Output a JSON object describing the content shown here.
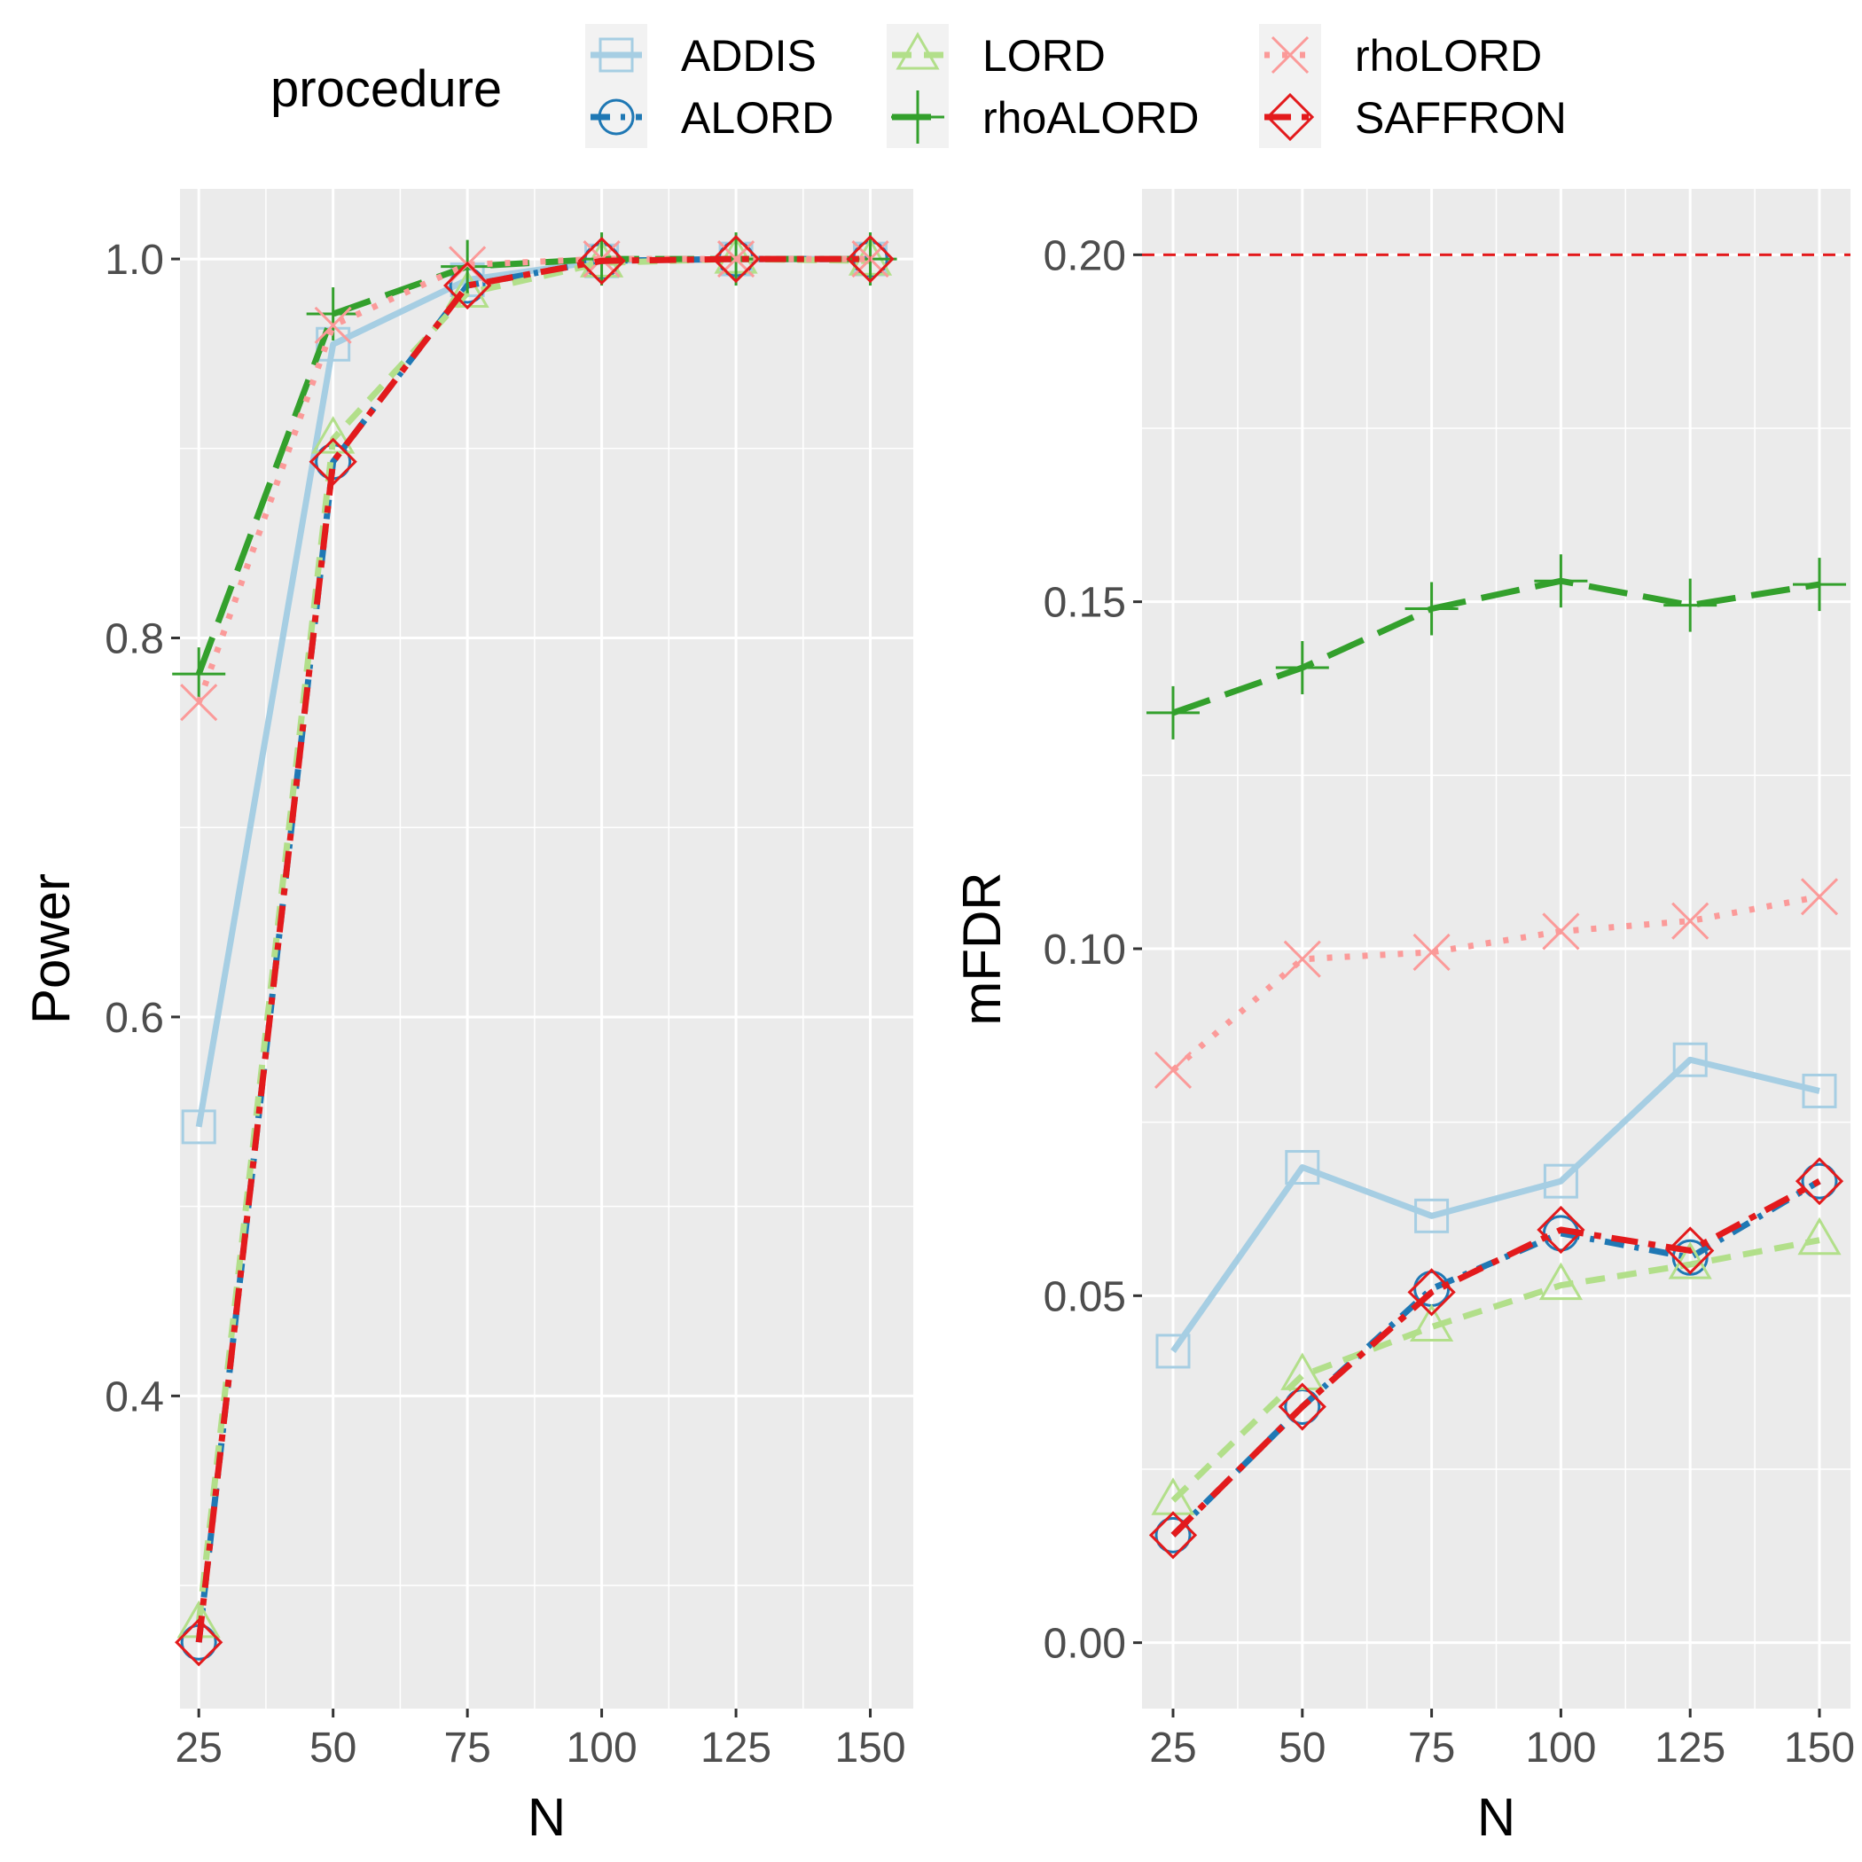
{
  "legend": {
    "title": "procedure",
    "entries": [
      {
        "name": "ADDIS",
        "color": "#A6CEE3",
        "shape": "square",
        "linetype": "solid"
      },
      {
        "name": "ALORD",
        "color": "#1F78B4",
        "shape": "circle",
        "linetype": "dashdot"
      },
      {
        "name": "LORD",
        "color": "#B2DF8A",
        "shape": "triangle",
        "linetype": "dashed"
      },
      {
        "name": "rhoALORD",
        "color": "#33A02C",
        "shape": "plus",
        "linetype": "longdash"
      },
      {
        "name": "rhoLORD",
        "color": "#FB9A99",
        "shape": "cross",
        "linetype": "dotted"
      },
      {
        "name": "SAFFRON",
        "color": "#E31A1C",
        "shape": "diamond",
        "linetype": "twodash"
      }
    ]
  },
  "chart_data": [
    {
      "type": "line",
      "xlabel": "N",
      "ylabel": "Power",
      "x": [
        25,
        50,
        75,
        100,
        125,
        150
      ],
      "xticks": [
        "25",
        "50",
        "75",
        "100",
        "125",
        "150"
      ],
      "xlim": [
        21.5,
        158
      ],
      "ylim": [
        0.235,
        1.037
      ],
      "yticks": [
        "0.4",
        "0.6",
        "0.8",
        "1.0"
      ],
      "ytick_values": [
        0.4,
        0.6,
        0.8,
        1.0
      ],
      "grid": true,
      "series": [
        {
          "name": "ADDIS",
          "values": [
            0.542,
            0.955,
            0.989,
            0.999,
            1.0,
            1.0
          ]
        },
        {
          "name": "ALORD",
          "values": [
            0.27,
            0.893,
            0.986,
            0.999,
            1.0,
            1.0
          ]
        },
        {
          "name": "LORD",
          "values": [
            0.28,
            0.905,
            0.982,
            0.998,
            1.0,
            0.999
          ]
        },
        {
          "name": "rhoALORD",
          "values": [
            0.781,
            0.971,
            0.996,
            1.0,
            1.0,
            1.0
          ]
        },
        {
          "name": "rhoLORD",
          "values": [
            0.766,
            0.965,
            0.997,
            1.0,
            1.0,
            1.0
          ]
        },
        {
          "name": "SAFFRON",
          "values": [
            0.27,
            0.893,
            0.986,
            0.999,
            1.0,
            1.0
          ]
        }
      ]
    },
    {
      "type": "line",
      "xlabel": "N",
      "ylabel": "mFDR",
      "x": [
        25,
        50,
        75,
        100,
        125,
        150
      ],
      "xticks": [
        "25",
        "50",
        "75",
        "100",
        "125",
        "150"
      ],
      "xlim": [
        19,
        156
      ],
      "ylim": [
        -0.0095,
        0.2095
      ],
      "yticks": [
        "0.00",
        "0.05",
        "0.10",
        "0.15",
        "0.20"
      ],
      "ytick_values": [
        0.0,
        0.05,
        0.1,
        0.15,
        0.2
      ],
      "grid": true,
      "reference_line": {
        "y": 0.2,
        "color": "#E31A1C",
        "linetype": "dashed"
      },
      "series": [
        {
          "name": "ADDIS",
          "values": [
            0.042,
            0.0685,
            0.0615,
            0.0665,
            0.084,
            0.0795
          ]
        },
        {
          "name": "ALORD",
          "values": [
            0.0155,
            0.034,
            0.051,
            0.059,
            0.0555,
            0.0665
          ]
        },
        {
          "name": "LORD",
          "values": [
            0.0205,
            0.0385,
            0.0455,
            0.0515,
            0.0545,
            0.058
          ]
        },
        {
          "name": "rhoALORD",
          "values": [
            0.134,
            0.1405,
            0.149,
            0.153,
            0.1495,
            0.1525
          ]
        },
        {
          "name": "rhoLORD",
          "values": [
            0.0825,
            0.0985,
            0.0995,
            0.1025,
            0.104,
            0.1075
          ]
        },
        {
          "name": "SAFFRON",
          "values": [
            0.0155,
            0.034,
            0.0505,
            0.0595,
            0.0565,
            0.0665
          ]
        }
      ]
    }
  ]
}
